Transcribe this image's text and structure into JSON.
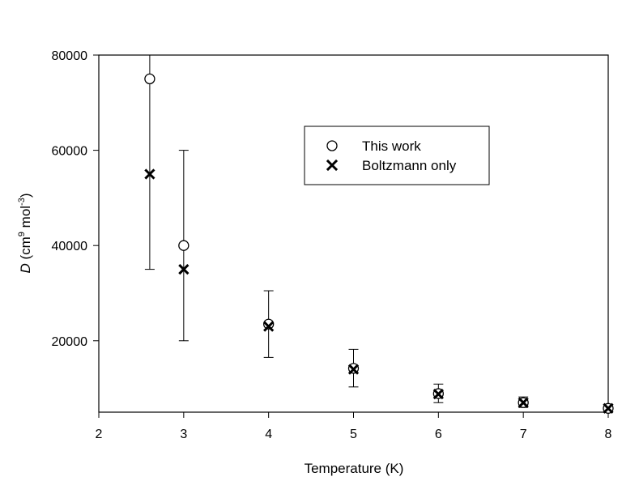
{
  "chart_data": {
    "type": "scatter",
    "xlabel": "Temperature (K)",
    "ylabel": {
      "italic": "D",
      "pre": " (cm",
      "sup1": "9",
      "mid": " mol",
      "sup2": "-3",
      "post": ")"
    },
    "xlim": [
      2,
      8
    ],
    "ylim": [
      5000,
      80000
    ],
    "x_ticks": [
      2,
      3,
      4,
      5,
      6,
      7,
      8
    ],
    "y_ticks": [
      20000,
      40000,
      60000,
      80000
    ],
    "grid": false,
    "legend_position": "top-center",
    "series": [
      {
        "name": "This work",
        "marker": "open-circle",
        "points": [
          {
            "x": 2.6,
            "y": 75000,
            "err_low": 35000,
            "err_high": 80000
          },
          {
            "x": 3,
            "y": 40000,
            "err_low": 20000,
            "err_high": 60000
          },
          {
            "x": 4,
            "y": 23500,
            "err_low": 16500,
            "err_high": 30500
          },
          {
            "x": 5,
            "y": 14200,
            "err_low": 10300,
            "err_high": 18200
          },
          {
            "x": 6,
            "y": 8900,
            "err_low": 7000,
            "err_high": 10900
          },
          {
            "x": 7,
            "y": 7000,
            "err_low": 6000,
            "err_high": 8200
          },
          {
            "x": 8,
            "y": 5800,
            "err_low": 5500,
            "err_high": 6200
          }
        ]
      },
      {
        "name": "Boltzmann only",
        "marker": "x",
        "points": [
          {
            "x": 2.6,
            "y": 55000
          },
          {
            "x": 3,
            "y": 35000
          },
          {
            "x": 4,
            "y": 23000
          },
          {
            "x": 5,
            "y": 14000
          },
          {
            "x": 6,
            "y": 8800
          },
          {
            "x": 7,
            "y": 7000
          },
          {
            "x": 8,
            "y": 5800
          }
        ]
      }
    ]
  }
}
